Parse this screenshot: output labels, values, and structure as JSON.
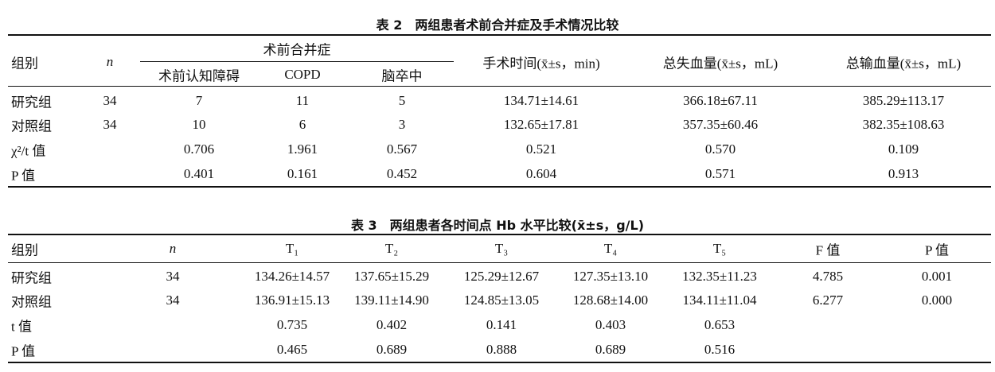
{
  "table2": {
    "title": "表 2　两组患者术前合并症及手术情况比较",
    "header": {
      "group": "组别",
      "n": "n",
      "complication": "术前合并症",
      "sub": [
        "术前认知障碍",
        "COPD",
        "脑卒中"
      ],
      "others": [
        "手术时间(x̄±s，min)",
        "总失血量(x̄±s，mL)",
        "总输血量(x̄±s，mL)"
      ]
    },
    "rows": [
      {
        "label": "研究组",
        "n": "34",
        "cells": [
          "7",
          "11",
          "5",
          "134.71±14.61",
          "366.18±67.11",
          "385.29±113.17"
        ]
      },
      {
        "label": "对照组",
        "n": "34",
        "cells": [
          "10",
          "6",
          "3",
          "132.65±17.81",
          "357.35±60.46",
          "382.35±108.63"
        ]
      },
      {
        "label": "χ²/t 值",
        "cells": [
          "0.706",
          "1.961",
          "0.567",
          "0.521",
          "0.570",
          "0.109"
        ]
      },
      {
        "label": "P 值",
        "cells": [
          "0.401",
          "0.161",
          "0.452",
          "0.604",
          "0.571",
          "0.913"
        ]
      }
    ]
  },
  "table3": {
    "title": "表 3　两组患者各时间点 Hb 水平比较(x̄±s，g/L)",
    "header": {
      "group": "组别",
      "n": "n",
      "cols": [
        "T₁",
        "T₂",
        "T₃",
        "T₄",
        "T₅",
        "F 值",
        "P 值"
      ]
    },
    "rows": [
      {
        "label": "研究组",
        "n": "34",
        "cells": [
          "134.26±14.57",
          "137.65±15.29",
          "125.29±12.67",
          "127.35±13.10",
          "132.35±11.23",
          "4.785",
          "0.001"
        ]
      },
      {
        "label": "对照组",
        "n": "34",
        "cells": [
          "136.91±15.13",
          "139.11±14.90",
          "124.85±13.05",
          "128.68±14.00",
          "134.11±11.04",
          "6.277",
          "0.000"
        ]
      },
      {
        "label": "t 值",
        "cells": [
          "0.735",
          "0.402",
          "0.141",
          "0.403",
          "0.653"
        ]
      },
      {
        "label": "P 值",
        "cells": [
          "0.465",
          "0.689",
          "0.888",
          "0.689",
          "0.516"
        ]
      }
    ]
  }
}
